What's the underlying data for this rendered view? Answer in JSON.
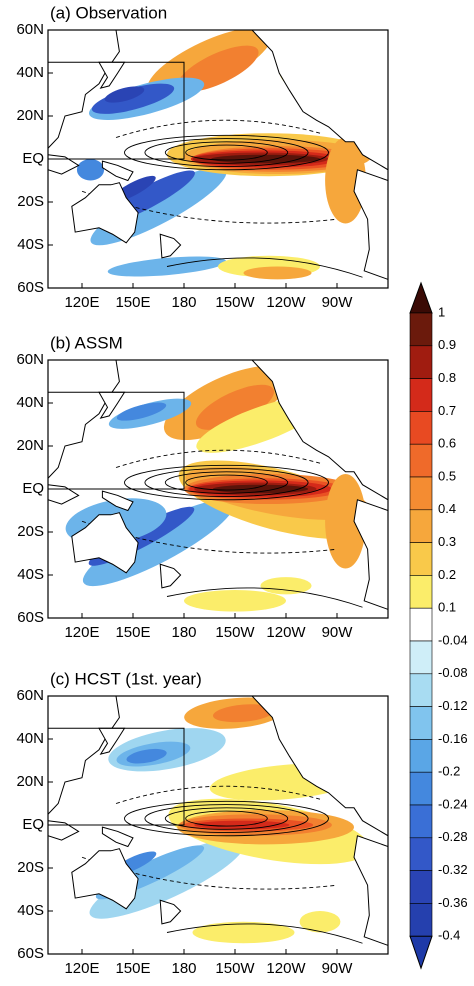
{
  "panels": [
    {
      "title": "(a) Observation"
    },
    {
      "title": "(b) ASSM"
    },
    {
      "title": "(c) HCST (1st. year)"
    }
  ],
  "lat_labels": [
    "60N",
    "40N",
    "20N",
    "EQ",
    "20S",
    "40S",
    "60S"
  ],
  "lon_labels": [
    "120E",
    "150E",
    "180",
    "150W",
    "120W",
    "90W"
  ],
  "colorbar": {
    "labels": [
      "1",
      "0.9",
      "0.8",
      "0.7",
      "0.6",
      "0.5",
      "0.4",
      "0.3",
      "0.2",
      "0.1",
      "-0.04",
      "-0.08",
      "-0.12",
      "-0.16",
      "-0.2",
      "-0.24",
      "-0.28",
      "-0.32",
      "-0.36",
      "-0.4"
    ]
  }
}
